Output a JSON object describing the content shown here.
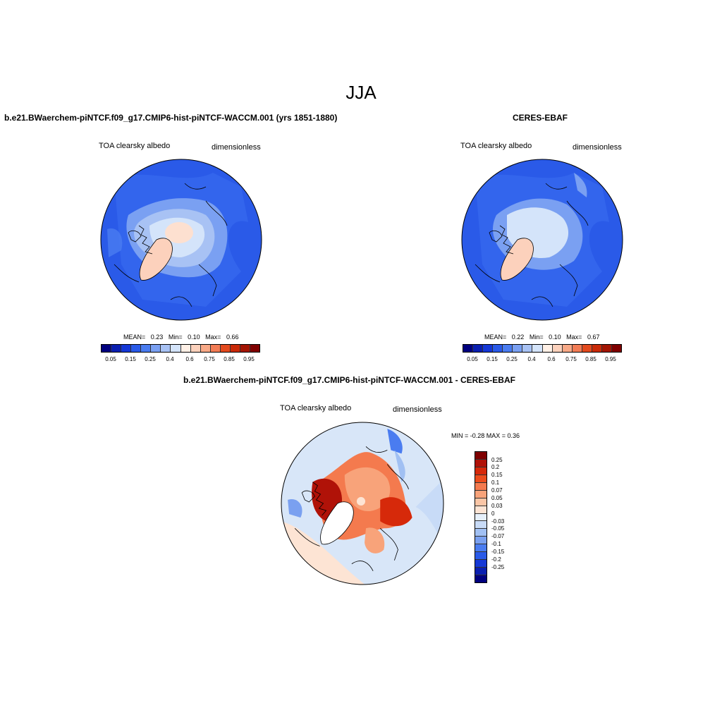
{
  "season": "JJA",
  "panels": {
    "model": {
      "title": "b.e21.BWaerchem-piNTCF.f09_g17.CMIP6-hist-piNTCF-WACCM.001 (yrs 1851-1880)",
      "variable": "TOA clearsky albedo",
      "units": "dimensionless",
      "mean_label": "MEAN=",
      "mean": "0.23",
      "min_label": "Min=",
      "min": "0.10",
      "max_label": "Max=",
      "max": "0.66"
    },
    "obs": {
      "title": "CERES-EBAF",
      "variable": "TOA clearsky albedo",
      "units": "dimensionless",
      "mean_label": "MEAN=",
      "mean": "0.22",
      "min_label": "Min=",
      "min": "0.10",
      "max_label": "Max=",
      "max": "0.67"
    },
    "diff": {
      "title": "b.e21.BWaerchem-piNTCF.f09_g17.CMIP6-hist-piNTCF-WACCM.001 - CERES-EBAF",
      "variable": "TOA clearsky albedo",
      "units": "dimensionless",
      "minmax": "MIN =  -0.28 MAX =   0.36"
    }
  },
  "colorbar_main": {
    "colors": [
      "#00007f",
      "#0a1fb0",
      "#1538d6",
      "#2a5ae8",
      "#4a7cf0",
      "#7aa0f2",
      "#a8c2f4",
      "#d4e4fa",
      "#fff0e6",
      "#fcd1bc",
      "#f8a987",
      "#f27c55",
      "#e34a1e",
      "#c92a08",
      "#a31503",
      "#7f0000"
    ],
    "ticks": [
      "0.05",
      "0.15",
      "0.25",
      "0.4",
      "0.6",
      "0.75",
      "0.85",
      "0.95"
    ]
  },
  "colorbar_diff": {
    "colors": [
      "#7f0000",
      "#b01208",
      "#d6290a",
      "#ec4c1c",
      "#f47a4e",
      "#f8a37a",
      "#fbc6a6",
      "#fde4d4",
      "#e6f0fb",
      "#c8dbf7",
      "#a1c0f3",
      "#7aa0f0",
      "#4a7cf0",
      "#2a5ae8",
      "#1538d6",
      "#0a1fb0",
      "#00007f"
    ],
    "ticks": [
      "0.25",
      "0.2",
      "0.15",
      "0.1",
      "0.07",
      "0.05",
      "0.03",
      "0",
      "-0.03",
      "-0.05",
      "-0.07",
      "-0.1",
      "-0.15",
      "-0.2",
      "-0.25"
    ]
  }
}
